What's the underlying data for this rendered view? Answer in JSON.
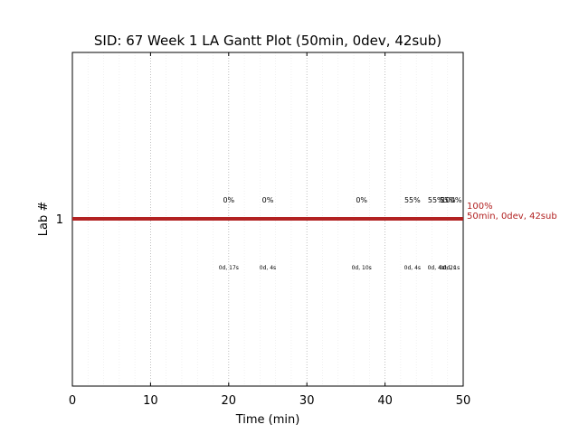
{
  "chart_data": {
    "type": "gantt",
    "title": "SID: 67 Week 1 LA Gantt Plot (50min, 0dev, 42sub)",
    "xlabel": "Time (min)",
    "ylabel": "Lab #",
    "xlim": [
      0,
      50
    ],
    "x_ticks": [
      0,
      10,
      20,
      30,
      40,
      50
    ],
    "x_tick_labels": [
      "0",
      "10",
      "20",
      "30",
      "40",
      "50"
    ],
    "y_categories": [
      "1"
    ],
    "major_grid": "dotted vertical every 10 min",
    "minor_grid": "faint vertical every 2 min",
    "bar": {
      "lab": "1",
      "start": 0,
      "end": 50,
      "color": "#b22222"
    },
    "end_annotation": [
      "100%",
      "50min, 0dev, 42sub"
    ],
    "submissions": [
      {
        "x": 20.0,
        "score": "0%",
        "elapsed": "0d, 17s"
      },
      {
        "x": 25.0,
        "score": "0%",
        "elapsed": "0d, 4s"
      },
      {
        "x": 37.0,
        "score": "0%",
        "elapsed": "0d, 10s"
      },
      {
        "x": 43.5,
        "score": "55%",
        "elapsed": "0d, 4s"
      },
      {
        "x": 46.5,
        "score": "55%",
        "elapsed": "0d, 4s"
      },
      {
        "x": 48.0,
        "score": "55%",
        "elapsed": "0d, 2s"
      },
      {
        "x": 48.5,
        "score": "100%",
        "elapsed": "0d, 1s"
      }
    ]
  }
}
